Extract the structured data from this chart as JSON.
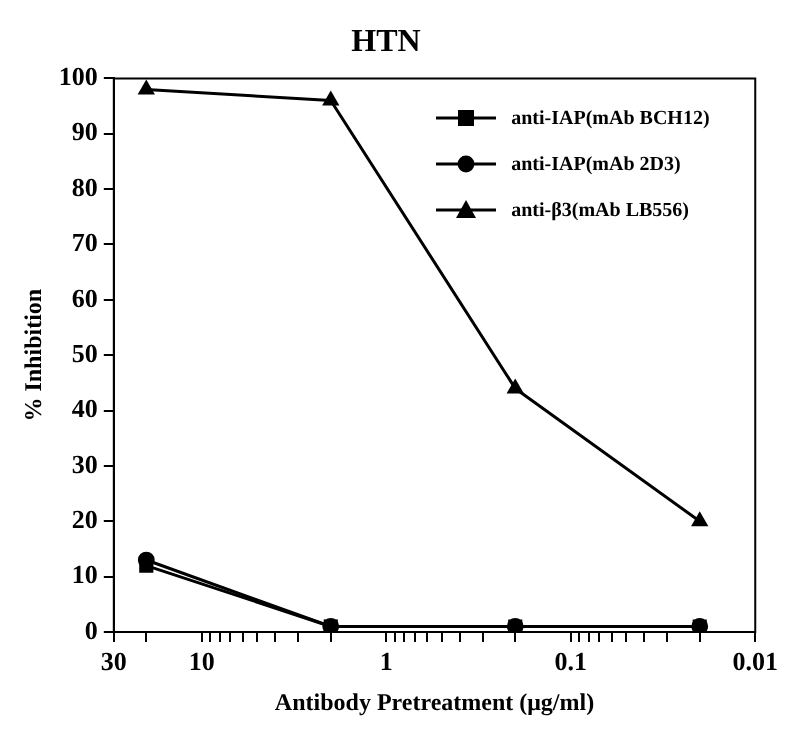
{
  "chart_data": {
    "type": "line",
    "title": "HTN",
    "xlabel": "Antibody Pretreatment (μg/ml)",
    "ylabel": "% Inhibition",
    "x": [
      20,
      2,
      0.2,
      0.02
    ],
    "series": [
      {
        "name": "anti-IAP(mAb BCH12)",
        "color": "#000000",
        "marker": "square",
        "values": [
          12,
          1,
          1,
          1
        ]
      },
      {
        "name": "anti-IAP(mAb 2D3)",
        "color": "#000000",
        "marker": "circle",
        "values": [
          13,
          1,
          1,
          1
        ]
      },
      {
        "name": "anti-β3(mAb LB556)",
        "color": "#000000",
        "marker": "triangle",
        "values": [
          98,
          96,
          44,
          20
        ]
      }
    ],
    "log": "x",
    "xlim": [
      30,
      0.01
    ],
    "xticks": [
      30,
      {
        "value": 20,
        "label": null
      },
      10,
      {
        "value": 9,
        "label": null
      },
      {
        "value": 8,
        "label": null
      },
      {
        "value": 7,
        "label": null
      },
      {
        "value": 6,
        "label": null
      },
      {
        "value": 5,
        "label": null
      },
      {
        "value": 4,
        "label": null
      },
      {
        "value": 3,
        "label": null
      },
      {
        "value": 2,
        "label": null
      },
      1,
      {
        "value": 0.9,
        "label": null
      },
      {
        "value": 0.8,
        "label": null
      },
      {
        "value": 0.7,
        "label": null
      },
      {
        "value": 0.6,
        "label": null
      },
      {
        "value": 0.5,
        "label": null
      },
      {
        "value": 0.4,
        "label": null
      },
      {
        "value": 0.3,
        "label": null
      },
      {
        "value": 0.2,
        "label": null
      },
      0.1,
      {
        "value": 0.09,
        "label": null
      },
      {
        "value": 0.08,
        "label": null
      },
      {
        "value": 0.07,
        "label": null
      },
      {
        "value": 0.06,
        "label": null
      },
      {
        "value": 0.05,
        "label": null
      },
      {
        "value": 0.04,
        "label": null
      },
      {
        "value": 0.03,
        "label": null
      },
      {
        "value": 0.02,
        "label": null
      },
      0.01
    ],
    "ylim": [
      0,
      100
    ],
    "yticks": [
      0,
      10,
      20,
      30,
      40,
      50,
      60,
      70,
      80,
      90,
      100
    ],
    "grid": false,
    "legend": "top right",
    "line_style": "solid"
  }
}
